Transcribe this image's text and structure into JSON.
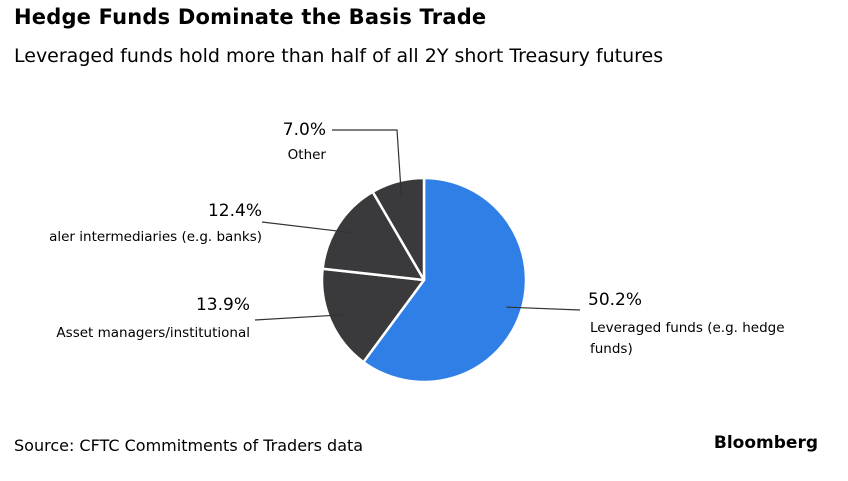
{
  "header": {
    "title": "Hedge Funds Dominate the Basis Trade",
    "subtitle": "Leveraged funds hold more than half of all 2Y short Treasury futures"
  },
  "footer": {
    "source": "Source: CFTC Commitments of Traders data",
    "brand": "Bloomberg"
  },
  "colors": {
    "highlight": "#2f7fe6",
    "other": "#3a3a3c",
    "divider": "#ffffff",
    "leader": "#333333"
  },
  "chart_data": {
    "type": "pie",
    "title": "Hedge Funds Dominate the Basis Trade",
    "subtitle": "Leveraged funds hold more than half of all 2Y short Treasury futures",
    "slices": [
      {
        "label": "Leveraged funds (e.g. hedge funds)",
        "label_lines": [
          "Leveraged funds (e.g. hedge",
          "funds)"
        ],
        "value": 50.2,
        "value_label": "50.2%",
        "color": "#2f7fe6"
      },
      {
        "label": "Asset managers/institutional",
        "label_lines": [
          "Asset managers/institutional"
        ],
        "value": 13.9,
        "value_label": "13.9%",
        "color": "#3a3a3c"
      },
      {
        "label": "aler intermediaries (e.g. banks)",
        "label_lines": [
          "aler intermediaries (e.g. banks)"
        ],
        "value": 12.4,
        "value_label": "12.4%",
        "color": "#3a3a3c"
      },
      {
        "label": "Other",
        "label_lines": [
          "Other"
        ],
        "value": 7.0,
        "value_label": "7.0%",
        "color": "#3a3a3c"
      }
    ]
  }
}
